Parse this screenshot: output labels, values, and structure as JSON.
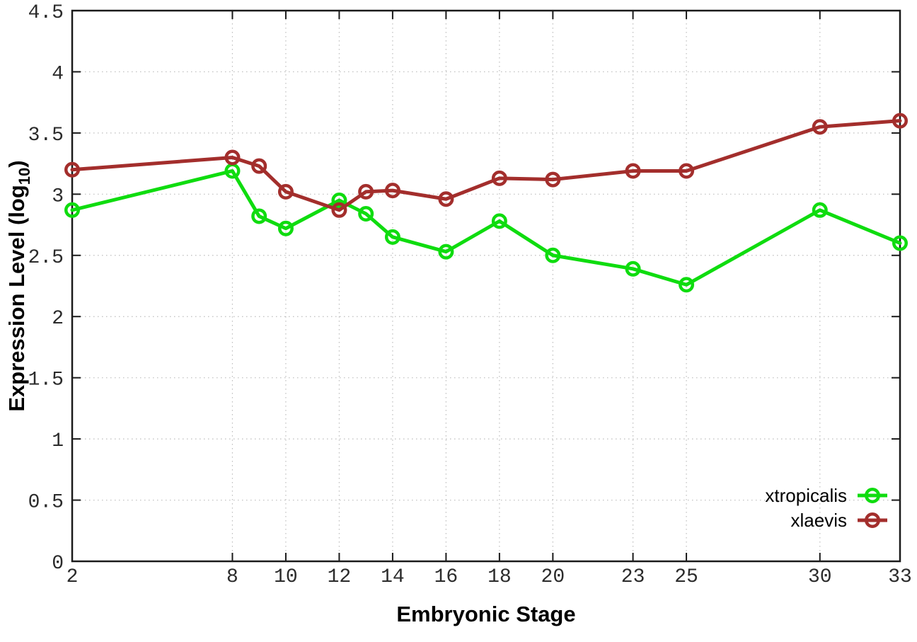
{
  "chart_data": {
    "type": "line",
    "title": "",
    "xlabel": "Embryonic Stage",
    "ylabel": {
      "main": "Expression Level (log",
      "sub": "10",
      "end": ")"
    },
    "x": [
      2,
      8,
      9,
      10,
      12,
      13,
      14,
      16,
      18,
      20,
      23,
      25,
      30,
      33
    ],
    "series": [
      {
        "name": "xtropicalis",
        "color": "#0fdc0f",
        "values": [
          2.87,
          3.19,
          2.82,
          2.72,
          2.95,
          2.84,
          2.65,
          2.53,
          2.78,
          2.5,
          2.39,
          2.26,
          2.87,
          2.6
        ]
      },
      {
        "name": "xlaevis",
        "color": "#a32e2c",
        "values": [
          3.2,
          3.3,
          3.23,
          3.02,
          2.87,
          3.02,
          3.03,
          2.96,
          3.13,
          3.12,
          3.19,
          3.19,
          3.55,
          3.6
        ]
      }
    ],
    "xlim": [
      2,
      33
    ],
    "ylim": [
      0,
      4.5
    ],
    "x_ticks": [
      2,
      8,
      10,
      12,
      14,
      16,
      18,
      20,
      23,
      25,
      30,
      33
    ],
    "y_ticks": [
      0,
      0.5,
      1,
      1.5,
      2,
      2.5,
      3,
      3.5,
      4,
      4.5
    ],
    "grid": true,
    "grid_color": "#bdbdbd",
    "axis_color": "#1a1a1a",
    "legend_position": "bottom-right",
    "marker": "open-circle"
  }
}
